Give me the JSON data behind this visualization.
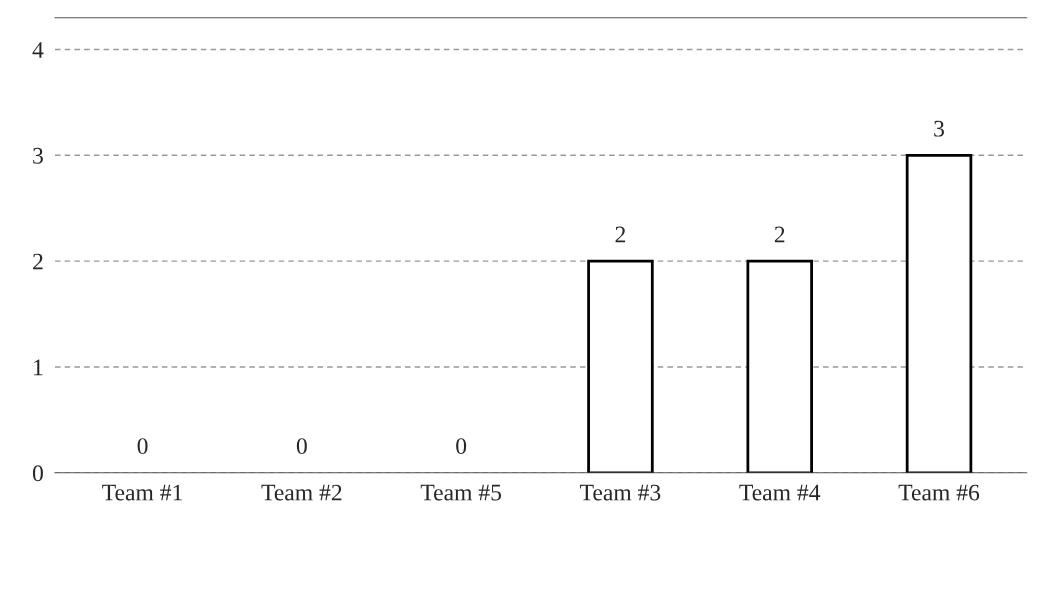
{
  "chart_data": {
    "type": "bar",
    "categories": [
      "Team #1",
      "Team #2",
      "Team #5",
      "Team #3",
      "Team #4",
      "Team #6"
    ],
    "values": [
      0,
      0,
      0,
      2,
      2,
      3
    ],
    "color": "#ffffff",
    "ylim": [
      0,
      4.3
    ],
    "yticks": [
      0,
      1,
      2,
      3,
      4
    ],
    "grid": "y",
    "data_labels": true
  }
}
